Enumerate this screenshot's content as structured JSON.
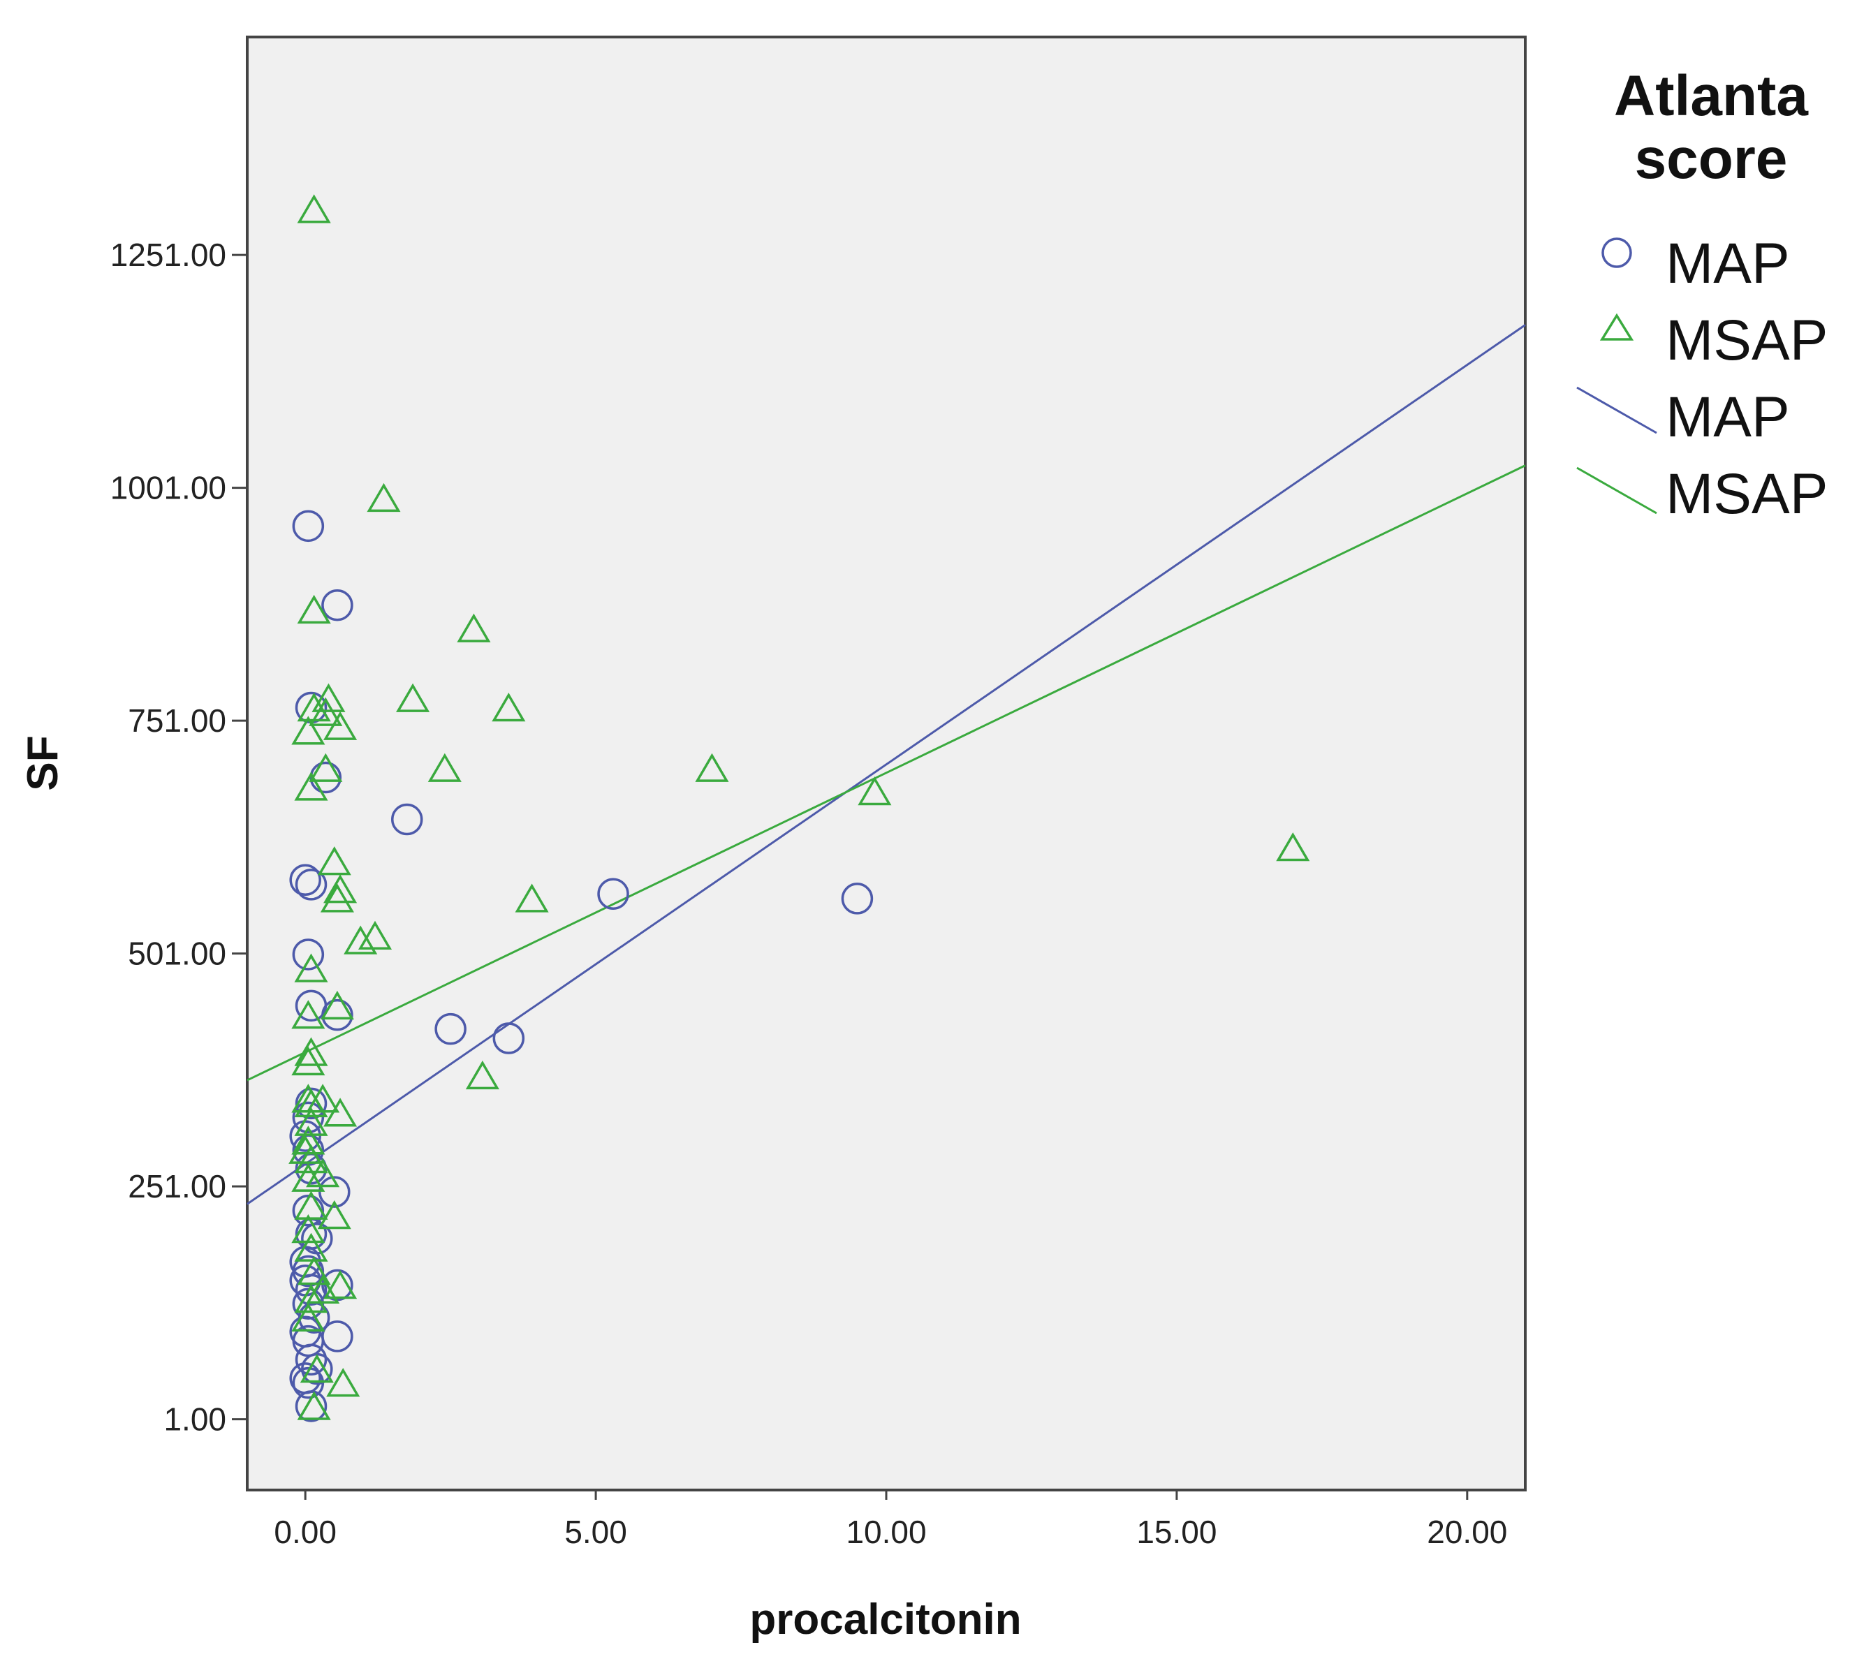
{
  "chart_data": {
    "type": "scatter",
    "title": "",
    "xlabel": "procalcitonin",
    "ylabel": "SF",
    "xlim": [
      -1.0,
      21.0
    ],
    "ylim": [
      -75,
      1485
    ],
    "xticks": [
      0,
      5,
      10,
      15,
      20
    ],
    "xtick_labels": [
      "0.00",
      "5.00",
      "10.00",
      "15.00",
      "20.00"
    ],
    "yticks": [
      1,
      251,
      501,
      751,
      1001,
      1251
    ],
    "ytick_labels": [
      "1.00",
      "251.00",
      "501.00",
      "751.00",
      "1001.00",
      "1251.00"
    ],
    "grid": false,
    "legend": {
      "title": "Atlanta score",
      "title_lines": [
        "Atlanta",
        "score"
      ],
      "placement": "right",
      "entries": [
        {
          "label": "MAP",
          "kind": "marker",
          "series": "MAP"
        },
        {
          "label": "MSAP",
          "kind": "marker",
          "series": "MSAP"
        },
        {
          "label": "MAP",
          "kind": "line",
          "series": "MAP"
        },
        {
          "label": "MSAP",
          "kind": "line",
          "series": "MSAP"
        }
      ]
    },
    "series": [
      {
        "name": "MAP",
        "marker": "circle",
        "color": "#4d5aaa",
        "points": [
          [
            0.05,
            960
          ],
          [
            0.55,
            875
          ],
          [
            0.1,
            765
          ],
          [
            0.35,
            690
          ],
          [
            1.75,
            645
          ],
          [
            0.0,
            580
          ],
          [
            0.1,
            575
          ],
          [
            5.3,
            565
          ],
          [
            9.5,
            560
          ],
          [
            0.05,
            500
          ],
          [
            0.1,
            445
          ],
          [
            0.55,
            435
          ],
          [
            2.5,
            420
          ],
          [
            3.5,
            410
          ],
          [
            0.1,
            340
          ],
          [
            0.05,
            325
          ],
          [
            0.0,
            305
          ],
          [
            0.05,
            290
          ],
          [
            0.1,
            270
          ],
          [
            0.5,
            245
          ],
          [
            0.05,
            225
          ],
          [
            0.1,
            200
          ],
          [
            0.2,
            195
          ],
          [
            0.0,
            170
          ],
          [
            0.05,
            160
          ],
          [
            0.0,
            150
          ],
          [
            0.1,
            140
          ],
          [
            0.55,
            145
          ],
          [
            0.05,
            125
          ],
          [
            0.15,
            110
          ],
          [
            0.0,
            95
          ],
          [
            0.05,
            85
          ],
          [
            0.55,
            90
          ],
          [
            0.1,
            65
          ],
          [
            0.0,
            45
          ],
          [
            0.05,
            40
          ],
          [
            0.1,
            15
          ],
          [
            0.2,
            55
          ]
        ],
        "fit": {
          "intercept": 275,
          "slope": 42.9
        }
      },
      {
        "name": "MSAP",
        "marker": "triangle",
        "color": "#3aaa3e",
        "points": [
          [
            0.15,
            1300
          ],
          [
            1.35,
            990
          ],
          [
            0.15,
            870
          ],
          [
            2.9,
            850
          ],
          [
            0.4,
            775
          ],
          [
            1.85,
            775
          ],
          [
            0.15,
            765
          ],
          [
            3.5,
            765
          ],
          [
            0.35,
            760
          ],
          [
            0.6,
            745
          ],
          [
            0.05,
            740
          ],
          [
            2.4,
            700
          ],
          [
            7.0,
            700
          ],
          [
            0.35,
            700
          ],
          [
            0.1,
            680
          ],
          [
            9.8,
            675
          ],
          [
            17.0,
            615
          ],
          [
            0.5,
            600
          ],
          [
            0.6,
            570
          ],
          [
            0.55,
            560
          ],
          [
            3.9,
            560
          ],
          [
            1.2,
            520
          ],
          [
            0.95,
            515
          ],
          [
            0.1,
            485
          ],
          [
            0.05,
            435
          ],
          [
            0.55,
            445
          ],
          [
            0.1,
            395
          ],
          [
            0.05,
            385
          ],
          [
            3.05,
            370
          ],
          [
            0.05,
            345
          ],
          [
            0.1,
            340
          ],
          [
            0.3,
            345
          ],
          [
            0.6,
            330
          ],
          [
            0.1,
            320
          ],
          [
            0.05,
            300
          ],
          [
            0.0,
            290
          ],
          [
            0.1,
            280
          ],
          [
            0.05,
            260
          ],
          [
            0.3,
            265
          ],
          [
            0.1,
            230
          ],
          [
            0.5,
            220
          ],
          [
            0.05,
            205
          ],
          [
            0.1,
            185
          ],
          [
            0.15,
            160
          ],
          [
            0.6,
            145
          ],
          [
            0.3,
            140
          ],
          [
            0.1,
            130
          ],
          [
            0.05,
            110
          ],
          [
            0.65,
            40
          ],
          [
            0.2,
            55
          ],
          [
            0.15,
            15
          ]
        ],
        "fit": {
          "intercept": 395,
          "slope": 30.0
        }
      }
    ]
  }
}
